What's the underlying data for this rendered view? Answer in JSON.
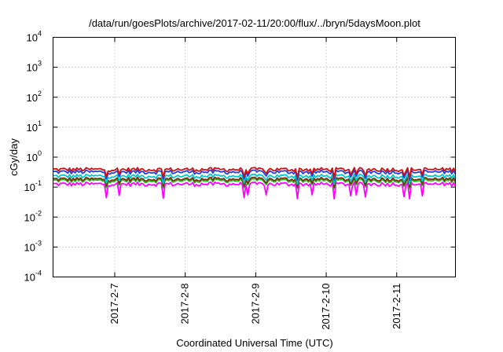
{
  "chart_data": {
    "type": "line",
    "title": "/data/run/goesPlots/archive/2017-02-11/20:00/flux/../bryn/5daysMoon.plot",
    "xlabel": "Coordinated Universal Time (UTC)",
    "ylabel": "cGy/day",
    "yscale": "log",
    "ylim": [
      0.0001,
      10000
    ],
    "y_ticks": [
      {
        "value": 0.0001,
        "base": "10",
        "exp": "-4"
      },
      {
        "value": 0.001,
        "base": "10",
        "exp": "-3"
      },
      {
        "value": 0.01,
        "base": "10",
        "exp": "-2"
      },
      {
        "value": 0.1,
        "base": "10",
        "exp": "-1"
      },
      {
        "value": 1,
        "base": "10",
        "exp": "0"
      },
      {
        "value": 10,
        "base": "10",
        "exp": "1"
      },
      {
        "value": 100,
        "base": "10",
        "exp": "2"
      },
      {
        "value": 1000,
        "base": "10",
        "exp": "3"
      },
      {
        "value": 10000,
        "base": "10",
        "exp": "4"
      }
    ],
    "xlim": [
      "2017-02-06T03:00",
      "2017-02-11T20:00"
    ],
    "x_ticks": [
      {
        "value": "2017-02-07T00:00",
        "label": "2017-2-7"
      },
      {
        "value": "2017-02-08T00:00",
        "label": "2017-2-8"
      },
      {
        "value": "2017-02-09T00:00",
        "label": "2017-2-9"
      },
      {
        "value": "2017-02-10T00:00",
        "label": "2017-2-10"
      },
      {
        "value": "2017-02-11T00:00",
        "label": "2017-2-11"
      }
    ],
    "grid": true,
    "series": [
      {
        "color": "#d01010",
        "level": 0.4
      },
      {
        "color": "#2040e0",
        "level": 0.33
      },
      {
        "color": "#00c8c8",
        "level": 0.24
      },
      {
        "color": "#7a3010",
        "level": 0.19
      },
      {
        "color": "#20c020",
        "level": 0.17
      },
      {
        "color": "#ff00ff",
        "level": 0.13
      }
    ]
  }
}
